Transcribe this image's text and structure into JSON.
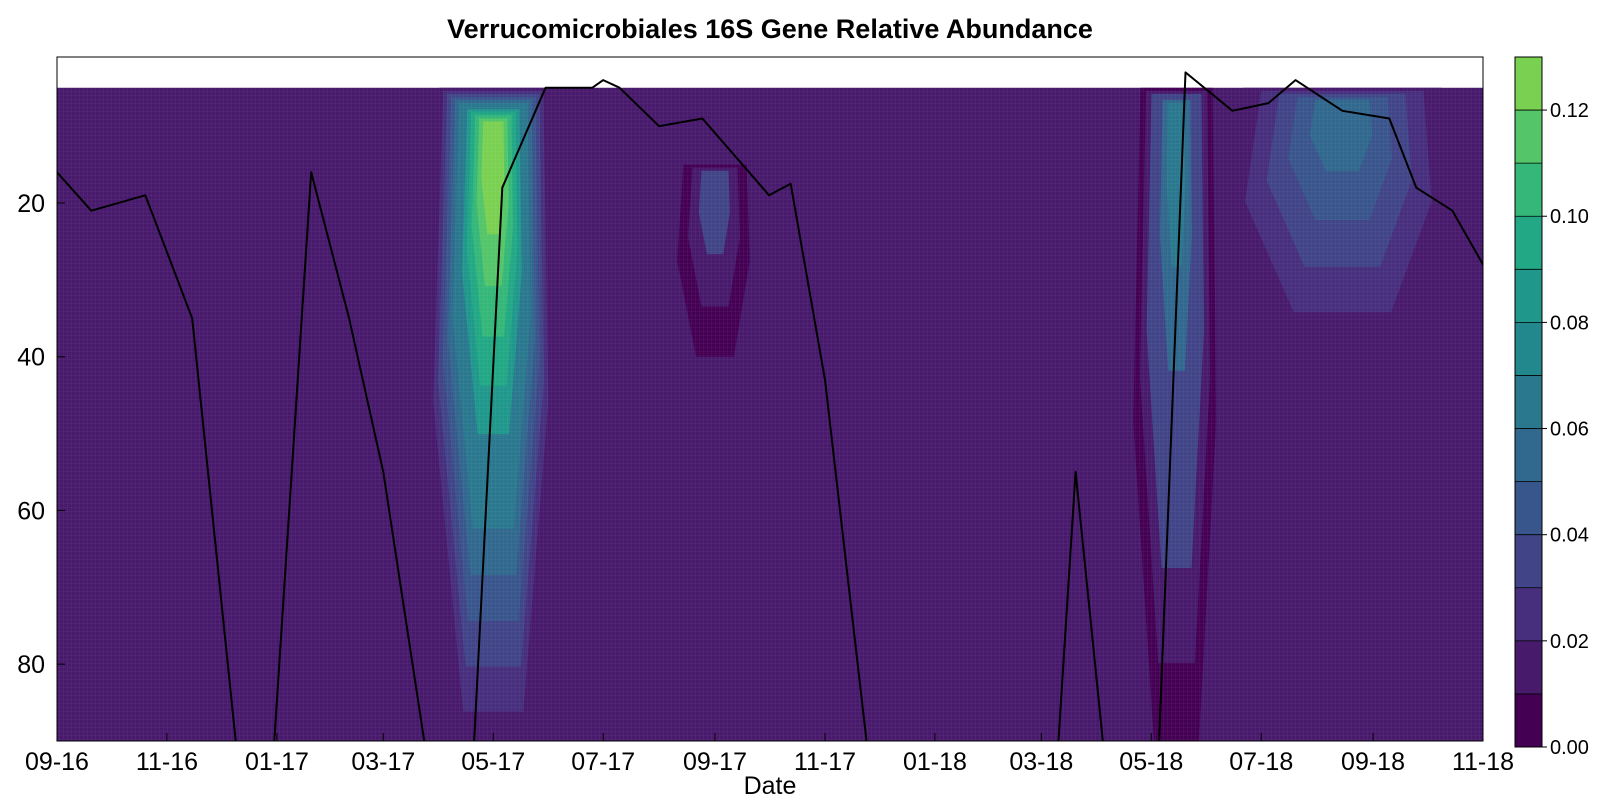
{
  "chart_data": {
    "type": "heatmap",
    "title": "Verrucomicrobiales 16S Gene Relative Abundance",
    "xlabel": "Date",
    "ylabel": "",
    "x_ticks": [
      "09-16",
      "11-16",
      "01-17",
      "03-17",
      "05-17",
      "07-17",
      "09-17",
      "11-17",
      "01-18",
      "03-18",
      "05-18",
      "07-18",
      "09-18",
      "11-18"
    ],
    "x_range": [
      "2016-09-01",
      "2018-11-01"
    ],
    "y_ticks": [
      20,
      40,
      60,
      80
    ],
    "y_range": [
      1,
      90
    ],
    "y_inverted": true,
    "colorbar": {
      "ticks": [
        "0.00",
        "0.02",
        "0.04",
        "0.06",
        "0.08",
        "0.10",
        "0.12"
      ],
      "range": [
        0,
        0.13
      ],
      "levels": [
        0,
        0.01,
        0.02,
        0.03,
        0.04,
        0.05,
        0.06,
        0.07,
        0.08,
        0.09,
        0.1,
        0.11,
        0.12,
        0.13
      ],
      "colormap": "viridis",
      "colors": [
        "#440154",
        "#481a6c",
        "#472f7d",
        "#414487",
        "#39568c",
        "#31688e",
        "#2a788e",
        "#23888e",
        "#1f988b",
        "#22a884",
        "#35b779",
        "#54c568",
        "#7ad151",
        "#fde725"
      ]
    },
    "hotspots": [
      {
        "date": "2017-05-01",
        "depth_top": 5,
        "depth_bottom": 92,
        "peak": 0.13,
        "width_days": 60
      },
      {
        "date": "2017-09-01",
        "depth_top": 15,
        "depth_bottom": 40,
        "peak": 0.03,
        "width_days": 35
      },
      {
        "date": "2018-05-15",
        "depth_top": 5,
        "depth_bottom": 92,
        "peak": 0.06,
        "width_days": 40
      },
      {
        "date": "2018-08-15",
        "depth_top": 5,
        "depth_bottom": 40,
        "peak": 0.05,
        "width_days": 110
      }
    ],
    "line_series": {
      "x": [
        "2016-09-01",
        "2016-09-20",
        "2016-10-20",
        "2016-11-15",
        "2016-12-10",
        "2016-12-30",
        "2017-01-20",
        "2017-02-10",
        "2017-03-01",
        "2017-03-25",
        "2017-04-20",
        "2017-05-06",
        "2017-05-30",
        "2017-06-25",
        "2017-07-01",
        "2017-07-10",
        "2017-08-01",
        "2017-08-25",
        "2017-10-01",
        "2017-10-13",
        "2017-11-01",
        "2017-11-25",
        "2018-03-10",
        "2018-03-20",
        "2018-04-05",
        "2018-05-05",
        "2018-05-20",
        "2018-06-15",
        "2018-07-05",
        "2018-07-20",
        "2018-08-15",
        "2018-09-10",
        "2018-09-25",
        "2018-10-15",
        "2018-11-01"
      ],
      "y": [
        16,
        21,
        19,
        35,
        92,
        92,
        16,
        35,
        55,
        92,
        92,
        18,
        5,
        5,
        4,
        5,
        10,
        9,
        19,
        17.5,
        43,
        92,
        92,
        55,
        92,
        92,
        3,
        8,
        7,
        4,
        8,
        9,
        18,
        21,
        28
      ]
    }
  }
}
